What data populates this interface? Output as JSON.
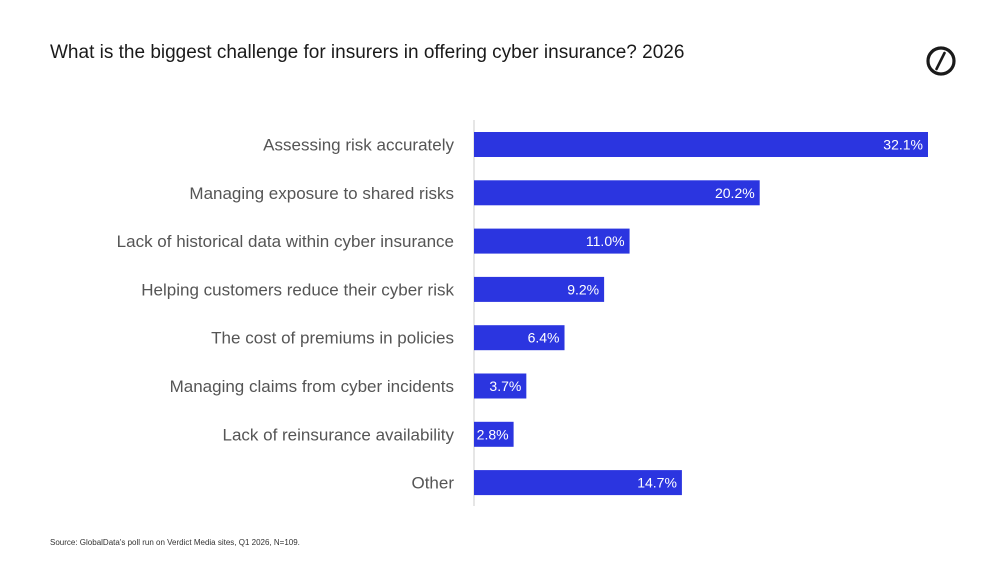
{
  "chart_data": {
    "type": "bar",
    "orientation": "horizontal",
    "title": "What is the biggest challenge for insurers in offering cyber insurance? 2026",
    "categories": [
      "Assessing risk accurately",
      "Managing exposure to shared risks",
      "Lack of historical data within cyber insurance",
      "Helping customers reduce their cyber risk",
      "The cost of premiums in policies",
      "Managing claims from cyber incidents",
      "Lack of reinsurance availability",
      "Other"
    ],
    "values": [
      32.1,
      20.2,
      11.0,
      9.2,
      6.4,
      3.7,
      2.8,
      14.7
    ],
    "value_labels": [
      "32.1%",
      "20.2%",
      "11.0%",
      "9.2%",
      "6.4%",
      "3.7%",
      "2.8%",
      "14.7%"
    ],
    "unit": "%",
    "xlim": [
      0,
      32.1
    ],
    "grid": false,
    "bar_color": "#2b35e0",
    "axis_color": "#cccccc"
  },
  "source": "Source: GlobalData's poll run on Verdict Media sites, Q1 2026, N=109.",
  "logo": {
    "icon": "globaldata-logo-icon"
  }
}
